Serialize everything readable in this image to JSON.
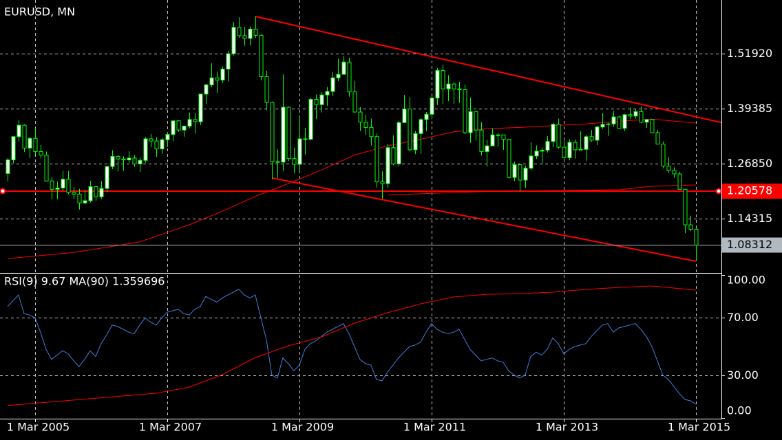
{
  "chart_data": [
    {
      "type": "candlestick",
      "title": "EURUSD, MN",
      "x": [
        "2004-10-01",
        "2004-11-01",
        "2004-12-01",
        "2005-01-01",
        "2005-02-01",
        "2005-03-01",
        "2005-04-01",
        "2005-05-01",
        "2005-06-01",
        "2005-07-01",
        "2005-08-01",
        "2005-09-01",
        "2005-10-01",
        "2005-11-01",
        "2005-12-01",
        "2006-01-01",
        "2006-02-01",
        "2006-03-01",
        "2006-04-01",
        "2006-05-01",
        "2006-06-01",
        "2006-07-01",
        "2006-08-01",
        "2006-09-01",
        "2006-10-01",
        "2006-11-01",
        "2006-12-01",
        "2007-01-01",
        "2007-02-01",
        "2007-03-01",
        "2007-04-01",
        "2007-05-01",
        "2007-06-01",
        "2007-07-01",
        "2007-08-01",
        "2007-09-01",
        "2007-10-01",
        "2007-11-01",
        "2007-12-01",
        "2008-01-01",
        "2008-02-01",
        "2008-03-01",
        "2008-04-01",
        "2008-05-01",
        "2008-06-01",
        "2008-07-01",
        "2008-08-01",
        "2008-09-01",
        "2008-10-01",
        "2008-11-01",
        "2008-12-01",
        "2009-01-01",
        "2009-02-01",
        "2009-03-01",
        "2009-04-01",
        "2009-05-01",
        "2009-06-01",
        "2009-07-01",
        "2009-08-01",
        "2009-09-01",
        "2009-10-01",
        "2009-11-01",
        "2009-12-01",
        "2010-01-01",
        "2010-02-01",
        "2010-03-01",
        "2010-04-01",
        "2010-05-01",
        "2010-06-01",
        "2010-07-01",
        "2010-08-01",
        "2010-09-01",
        "2010-10-01",
        "2010-11-01",
        "2010-12-01",
        "2011-01-01",
        "2011-02-01",
        "2011-03-01",
        "2011-04-01",
        "2011-05-01",
        "2011-06-01",
        "2011-07-01",
        "2011-08-01",
        "2011-09-01",
        "2011-10-01",
        "2011-11-01",
        "2011-12-01",
        "2012-01-01",
        "2012-02-01",
        "2012-03-01",
        "2012-04-01",
        "2012-05-01",
        "2012-06-01",
        "2012-07-01",
        "2012-08-01",
        "2012-09-01",
        "2012-10-01",
        "2012-11-01",
        "2012-12-01",
        "2013-01-01",
        "2013-02-01",
        "2013-03-01",
        "2013-04-01",
        "2013-05-01",
        "2013-06-01",
        "2013-07-01",
        "2013-08-01",
        "2013-09-01",
        "2013-10-01",
        "2013-11-01",
        "2013-12-01",
        "2014-01-01",
        "2014-02-01",
        "2014-03-01",
        "2014-04-01",
        "2014-05-01",
        "2014-06-01",
        "2014-07-01",
        "2014-08-01",
        "2014-09-01",
        "2014-10-01",
        "2014-11-01",
        "2014-12-01",
        "2015-01-01",
        "2015-02-01",
        "2015-03-01"
      ],
      "open": [
        1.246,
        1.277,
        1.33,
        1.356,
        1.304,
        1.326,
        1.296,
        1.288,
        1.229,
        1.21,
        1.213,
        1.233,
        1.203,
        1.199,
        1.179,
        1.184,
        1.216,
        1.193,
        1.212,
        1.262,
        1.285,
        1.279,
        1.277,
        1.281,
        1.268,
        1.276,
        1.325,
        1.32,
        1.302,
        1.323,
        1.335,
        1.366,
        1.345,
        1.354,
        1.369,
        1.364,
        1.427,
        1.448,
        1.464,
        1.459,
        1.484,
        1.519,
        1.579,
        1.56,
        1.554,
        1.575,
        1.561,
        1.467,
        1.408,
        1.273,
        1.272,
        1.397,
        1.28,
        1.267,
        1.325,
        1.324,
        1.415,
        1.403,
        1.425,
        1.433,
        1.464,
        1.472,
        1.5,
        1.432,
        1.386,
        1.363,
        1.351,
        1.33,
        1.227,
        1.223,
        1.305,
        1.268,
        1.362,
        1.393,
        1.3,
        1.337,
        1.369,
        1.381,
        1.418,
        1.481,
        1.439,
        1.45,
        1.439,
        1.437,
        1.339,
        1.387,
        1.345,
        1.296,
        1.309,
        1.334,
        1.334,
        1.324,
        1.237,
        1.266,
        1.231,
        1.258,
        1.286,
        1.297,
        1.299,
        1.319,
        1.358,
        1.306,
        1.282,
        1.317,
        1.3,
        1.301,
        1.33,
        1.322,
        1.352,
        1.358,
        1.359,
        1.375,
        1.349,
        1.38,
        1.377,
        1.387,
        1.363,
        1.369,
        1.339,
        1.313,
        1.263,
        1.253,
        1.245,
        1.21,
        1.129,
        1.119
      ],
      "high": [
        1.281,
        1.331,
        1.367,
        1.358,
        1.33,
        1.349,
        1.311,
        1.296,
        1.239,
        1.228,
        1.252,
        1.252,
        1.215,
        1.211,
        1.209,
        1.229,
        1.217,
        1.229,
        1.263,
        1.299,
        1.287,
        1.285,
        1.297,
        1.288,
        1.282,
        1.329,
        1.336,
        1.329,
        1.327,
        1.341,
        1.368,
        1.368,
        1.355,
        1.385,
        1.383,
        1.427,
        1.45,
        1.497,
        1.477,
        1.49,
        1.525,
        1.591,
        1.602,
        1.58,
        1.581,
        1.604,
        1.563,
        1.48,
        1.41,
        1.301,
        1.472,
        1.399,
        1.305,
        1.378,
        1.35,
        1.419,
        1.426,
        1.431,
        1.443,
        1.478,
        1.508,
        1.514,
        1.51,
        1.457,
        1.397,
        1.38,
        1.371,
        1.337,
        1.251,
        1.313,
        1.333,
        1.366,
        1.425,
        1.42,
        1.343,
        1.372,
        1.386,
        1.422,
        1.486,
        1.494,
        1.47,
        1.454,
        1.455,
        1.449,
        1.419,
        1.389,
        1.363,
        1.323,
        1.349,
        1.339,
        1.334,
        1.325,
        1.273,
        1.266,
        1.264,
        1.317,
        1.31,
        1.305,
        1.331,
        1.362,
        1.371,
        1.321,
        1.324,
        1.324,
        1.342,
        1.334,
        1.345,
        1.355,
        1.384,
        1.362,
        1.389,
        1.377,
        1.382,
        1.397,
        1.393,
        1.399,
        1.37,
        1.37,
        1.345,
        1.319,
        1.283,
        1.26,
        1.25,
        1.211,
        1.15,
        1.123
      ],
      "low": [
        1.228,
        1.27,
        1.319,
        1.295,
        1.281,
        1.289,
        1.28,
        1.229,
        1.187,
        1.187,
        1.207,
        1.199,
        1.187,
        1.164,
        1.175,
        1.18,
        1.184,
        1.188,
        1.203,
        1.256,
        1.251,
        1.252,
        1.271,
        1.261,
        1.25,
        1.271,
        1.306,
        1.284,
        1.291,
        1.306,
        1.32,
        1.341,
        1.33,
        1.349,
        1.337,
        1.356,
        1.404,
        1.443,
        1.43,
        1.452,
        1.456,
        1.515,
        1.555,
        1.537,
        1.538,
        1.555,
        1.458,
        1.39,
        1.233,
        1.236,
        1.252,
        1.274,
        1.247,
        1.25,
        1.289,
        1.321,
        1.37,
        1.385,
        1.4,
        1.422,
        1.457,
        1.472,
        1.421,
        1.385,
        1.343,
        1.334,
        1.31,
        1.214,
        1.188,
        1.213,
        1.265,
        1.262,
        1.363,
        1.297,
        1.29,
        1.291,
        1.343,
        1.37,
        1.402,
        1.404,
        1.411,
        1.404,
        1.407,
        1.336,
        1.316,
        1.321,
        1.287,
        1.262,
        1.309,
        1.307,
        1.3,
        1.234,
        1.229,
        1.205,
        1.213,
        1.253,
        1.279,
        1.269,
        1.294,
        1.306,
        1.303,
        1.275,
        1.276,
        1.28,
        1.3,
        1.275,
        1.318,
        1.311,
        1.348,
        1.332,
        1.353,
        1.348,
        1.343,
        1.37,
        1.371,
        1.361,
        1.35,
        1.338,
        1.313,
        1.258,
        1.248,
        1.236,
        1.21,
        1.11,
        1.115,
        1.046
      ],
      "close": [
        1.277,
        1.33,
        1.356,
        1.304,
        1.326,
        1.296,
        1.288,
        1.229,
        1.21,
        1.213,
        1.233,
        1.203,
        1.199,
        1.179,
        1.184,
        1.216,
        1.193,
        1.212,
        1.262,
        1.285,
        1.279,
        1.277,
        1.281,
        1.268,
        1.276,
        1.325,
        1.32,
        1.302,
        1.323,
        1.335,
        1.366,
        1.345,
        1.354,
        1.369,
        1.364,
        1.427,
        1.448,
        1.464,
        1.459,
        1.484,
        1.519,
        1.579,
        1.56,
        1.554,
        1.575,
        1.561,
        1.467,
        1.408,
        1.273,
        1.272,
        1.397,
        1.28,
        1.267,
        1.325,
        1.324,
        1.415,
        1.403,
        1.425,
        1.433,
        1.464,
        1.472,
        1.5,
        1.432,
        1.386,
        1.363,
        1.351,
        1.33,
        1.227,
        1.223,
        1.305,
        1.268,
        1.362,
        1.393,
        1.3,
        1.337,
        1.369,
        1.381,
        1.418,
        1.481,
        1.439,
        1.45,
        1.439,
        1.437,
        1.339,
        1.387,
        1.345,
        1.296,
        1.309,
        1.334,
        1.334,
        1.324,
        1.237,
        1.266,
        1.231,
        1.258,
        1.286,
        1.297,
        1.299,
        1.319,
        1.358,
        1.306,
        1.282,
        1.317,
        1.3,
        1.301,
        1.33,
        1.322,
        1.352,
        1.358,
        1.359,
        1.375,
        1.349,
        1.38,
        1.377,
        1.387,
        1.363,
        1.369,
        1.339,
        1.313,
        1.263,
        1.253,
        1.245,
        1.21,
        1.129,
        1.119,
        1.0831
      ],
      "color": "#00ff00",
      "up_fill": "#ffffff",
      "down_fill": "#000000",
      "xlim": [
        "2004-08-20",
        "2015-07-20"
      ],
      "xticks": [
        {
          "value": "2005-03-01",
          "label": "1 Mar 2005"
        },
        {
          "value": "2007-03-01",
          "label": "1 Mar 2007"
        },
        {
          "value": "2009-03-01",
          "label": "1 Mar 2009"
        },
        {
          "value": "2011-03-01",
          "label": "1 Mar 2011"
        },
        {
          "value": "2013-03-01",
          "label": "1 Mar 2013"
        },
        {
          "value": "2015-03-01",
          "label": "1 Mar 2015"
        }
      ],
      "ylim": [
        1.0194,
        1.6414
      ],
      "yticks": [
        {
          "value": 1.5192,
          "label": "1.51920"
        },
        1.39385,
        {
          "value": 1.2685,
          "label": "1.26850"
        },
        1.14315
      ],
      "grid": true,
      "lines": [
        {
          "color": "#ff0000",
          "x": [
            "2004-10-01",
            "2005-10-01",
            "2006-10-01",
            "2007-07-01",
            "2008-01-01",
            "2008-07-01",
            "2009-01-01",
            "2009-07-01",
            "2010-01-01",
            "2010-07-01",
            "2011-01-01",
            "2011-07-01",
            "2012-01-01",
            "2012-07-01",
            "2013-01-01",
            "2013-07-01",
            "2014-01-01",
            "2014-07-01",
            "2015-03-01"
          ],
          "values": [
            1.052,
            1.066,
            1.09,
            1.129,
            1.16,
            1.194,
            1.223,
            1.254,
            1.288,
            1.309,
            1.324,
            1.341,
            1.348,
            1.351,
            1.355,
            1.359,
            1.365,
            1.37,
            1.361
          ]
        },
        {
          "color": "#ff0000",
          "x": [
            "2010-07-01",
            "2012-01-01",
            "2014-01-01",
            "2014-07-01",
            "2015-03-01"
          ],
          "values": [
            1.197,
            1.205,
            1.209,
            1.217,
            1.22
          ]
        }
      ],
      "trendlines": [
        {
          "color": "#ff0000",
          "x": [
            "2008-07-01",
            "2015-07-20"
          ],
          "values": [
            1.604,
            1.362
          ]
        },
        {
          "color": "#ff0000",
          "x": [
            "2008-10-01",
            "2015-03-01"
          ],
          "values": [
            1.236,
            1.046
          ]
        }
      ],
      "hline": {
        "value": 1.20578,
        "color": "#ff0000"
      },
      "last_price": 1.08312
    },
    {
      "type": "line",
      "title": "RSI(9) 9.67 MA(90) 1.359696",
      "ylim": [
        0,
        100
      ],
      "yticks": [
        {
          "value": 100,
          "label": "100.00"
        },
        {
          "value": 70,
          "label": "70.00"
        },
        {
          "value": 30,
          "label": "30.00"
        },
        {
          "value": 0,
          "label": "0.00"
        }
      ],
      "series": [
        {
          "color": "#3f7fe0",
          "values": [
            78,
            82,
            86,
            73,
            72,
            70,
            60,
            48,
            41,
            44,
            47,
            45,
            40,
            36,
            41,
            47,
            43,
            52,
            58,
            65,
            64,
            62,
            60,
            59,
            65,
            70,
            67,
            65,
            70,
            74,
            75,
            76,
            73,
            72,
            76,
            78,
            85,
            83,
            81,
            84,
            86,
            88,
            90,
            86,
            84,
            86,
            70,
            55,
            30,
            28,
            42,
            38,
            33,
            37,
            48,
            52,
            54,
            57,
            60,
            62,
            64,
            66,
            59,
            50,
            41,
            38,
            37,
            27,
            26,
            32,
            37,
            42,
            46,
            50,
            51,
            53,
            60,
            66,
            62,
            60,
            59,
            60,
            62,
            55,
            48,
            44,
            40,
            41,
            42,
            40,
            39,
            33,
            30,
            28,
            30,
            43,
            46,
            44,
            48,
            56,
            52,
            45,
            48,
            50,
            51,
            52,
            57,
            61,
            65,
            66,
            60,
            63,
            64,
            65,
            66,
            62,
            57,
            50,
            40,
            30,
            27,
            22,
            17,
            13,
            12,
            9.67
          ]
        },
        {
          "color": "#ff0000",
          "x": [
            "2004-10-01",
            "2006-01-01",
            "2007-01-01",
            "2007-07-01",
            "2008-01-01",
            "2008-07-01",
            "2009-01-01",
            "2009-07-01",
            "2010-01-01",
            "2010-07-01",
            "2011-01-01",
            "2011-07-01",
            "2012-01-01",
            "2012-07-01",
            "2013-01-01",
            "2013-07-01",
            "2014-01-01",
            "2014-07-01",
            "2015-03-01"
          ],
          "values": [
            8.7,
            13.5,
            17.3,
            21.6,
            30.3,
            42.3,
            50.5,
            56.7,
            66.3,
            73.6,
            79.8,
            84.6,
            86.5,
            87.0,
            88.0,
            89.9,
            91.3,
            92.3,
            89.4
          ]
        }
      ]
    }
  ]
}
